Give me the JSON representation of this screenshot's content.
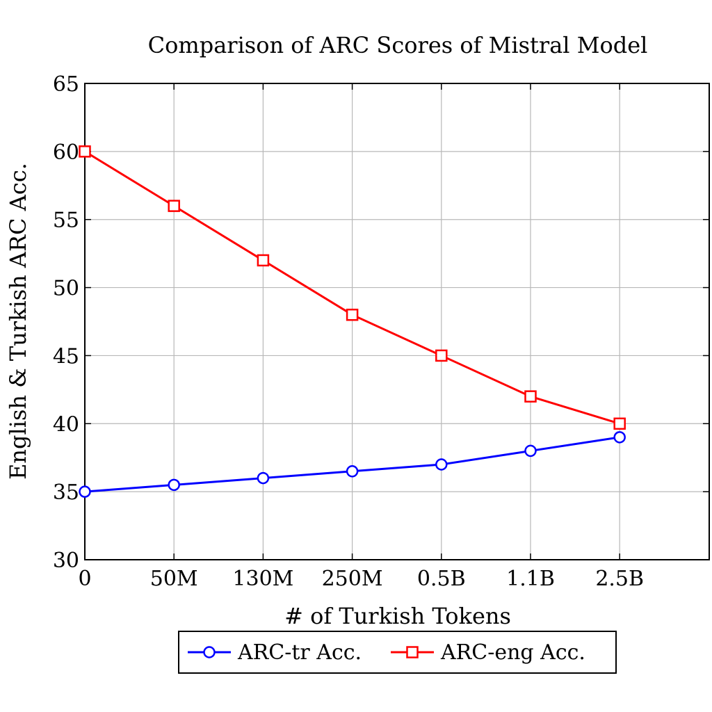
{
  "chart_data": {
    "type": "line",
    "title": "Comparison of ARC Scores of Mistral Model",
    "xlabel": "# of Turkish Tokens",
    "ylabel": "English & Turkish ARC Acc.",
    "categories": [
      "0",
      "50M",
      "130M",
      "250M",
      "0.5B",
      "1.1B",
      "2.5B"
    ],
    "ylim": [
      30,
      65
    ],
    "yticks": [
      "30",
      "35",
      "40",
      "45",
      "50",
      "55",
      "60",
      "65"
    ],
    "grid": true,
    "legend_position": "bottom-center",
    "series": [
      {
        "name": "ARC-tr Acc.",
        "color": "#0000ff",
        "marker": "circle",
        "values": [
          35,
          35.5,
          36,
          36.5,
          37,
          38,
          39
        ]
      },
      {
        "name": "ARC-eng Acc.",
        "color": "#ff0000",
        "marker": "square",
        "values": [
          60,
          56,
          52,
          48,
          45,
          42,
          40
        ]
      }
    ]
  }
}
